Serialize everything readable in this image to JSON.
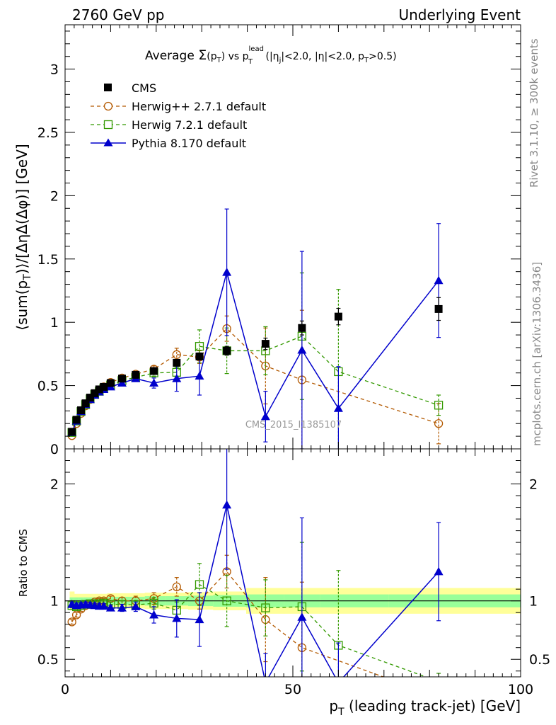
{
  "header": {
    "left": "2760 GeV pp",
    "right": "Underlying Event"
  },
  "side_labels": {
    "rivet": "Rivet 3.1.10, ≥ 300k events",
    "mcplots": "mcplots.cern.ch [arXiv:1306.3436]"
  },
  "watermark": "CMS_2015_I1385107",
  "chart_data": {
    "type": "line",
    "title_parts": {
      "t1": "Average ",
      "sigma": "Σ",
      "t2": "(p",
      "t2sub": "T",
      "t3": ") vs p",
      "t3sup": "lead",
      "t3sub": "T",
      "t4": " (|η",
      "t4sub": "j",
      "t5": "|<2.0, |η|<2.0, p",
      "t5sub": "T",
      "t6": ">0.5)"
    },
    "xlabel": {
      "pre": "p",
      "sub": "T",
      "post": " (leading track-jet) [GeV]"
    },
    "ylabel": "⟨sum(p_T)⟩/[ΔηΔ(Δφ)] [GeV]",
    "ylabel_parts": {
      "pre": "⟨sum(p",
      "sub": "T",
      "post": ")⟩/[ΔηΔ(Δφ)] [GeV]"
    },
    "ratio_ylabel": "Ratio to CMS",
    "xlim": [
      0,
      100
    ],
    "ylim": [
      0,
      3.35
    ],
    "ratio_ylim": [
      0.35,
      2.3
    ],
    "x_ticks": [
      "0",
      "50",
      "100"
    ],
    "y_ticks": [
      "0",
      "0.5",
      "1",
      "1.5",
      "2",
      "2.5",
      "3"
    ],
    "ratio_y_ticks": [
      "0.5",
      "1",
      "2"
    ],
    "legend_position": "top-left",
    "series": [
      {
        "name": "CMS",
        "color": "#000000",
        "marker": "square-filled",
        "x": [
          1.5,
          2.5,
          3.5,
          4.5,
          5.5,
          6.5,
          7.5,
          8.5,
          10,
          12.5,
          15.5,
          19.5,
          24.5,
          29.5,
          35.5,
          44,
          52,
          60,
          82
        ],
        "y": [
          0.135,
          0.23,
          0.305,
          0.36,
          0.405,
          0.44,
          0.47,
          0.49,
          0.52,
          0.555,
          0.585,
          0.615,
          0.68,
          0.73,
          0.775,
          0.83,
          0.955,
          1.045,
          1.105
        ],
        "yerr": [
          0.003,
          0.004,
          0.005,
          0.006,
          0.007,
          0.008,
          0.009,
          0.01,
          0.01,
          0.012,
          0.014,
          0.017,
          0.022,
          0.028,
          0.035,
          0.045,
          0.055,
          0.065,
          0.09
        ],
        "band_inner": [
          0.03,
          0.03,
          0.03,
          0.03,
          0.03,
          0.03,
          0.03,
          0.03,
          0.035,
          0.035,
          0.035,
          0.04,
          0.04,
          0.045,
          0.05,
          0.055,
          0.055,
          0.055,
          0.055
        ],
        "band_outer": [
          0.08,
          0.06,
          0.06,
          0.06,
          0.06,
          0.06,
          0.06,
          0.06,
          0.065,
          0.065,
          0.065,
          0.07,
          0.07,
          0.075,
          0.08,
          0.11,
          0.11,
          0.11,
          0.11
        ]
      },
      {
        "name": "Herwig++ 2.7.1 default",
        "color": "#b35900",
        "marker": "circle-open",
        "dash": "5,4",
        "x": [
          1.5,
          2.5,
          3.5,
          4.5,
          5.5,
          6.5,
          7.5,
          8.5,
          10,
          12.5,
          15.5,
          19.5,
          24.5,
          29.5,
          35.5,
          44,
          52,
          82
        ],
        "y": [
          0.105,
          0.2,
          0.28,
          0.34,
          0.39,
          0.43,
          0.465,
          0.49,
          0.525,
          0.56,
          0.59,
          0.63,
          0.745,
          0.725,
          0.95,
          0.655,
          0.545,
          0.2
        ],
        "yerr": [
          0.003,
          0.004,
          0.005,
          0.006,
          0.007,
          0.008,
          0.009,
          0.01,
          0.012,
          0.015,
          0.02,
          0.025,
          0.05,
          0.05,
          0.1,
          0.3,
          0.55,
          0.16
        ],
        "ratio": [
          0.82,
          0.88,
          0.93,
          0.96,
          0.97,
          0.99,
          1.0,
          1.0,
          1.02,
          1.0,
          1.0,
          1.02,
          1.12,
          1.0,
          1.25,
          0.84,
          0.6,
          0.18
        ],
        "ratio_err": [
          0.02,
          0.02,
          0.02,
          0.02,
          0.02,
          0.02,
          0.02,
          0.02,
          0.02,
          0.03,
          0.04,
          0.05,
          0.08,
          0.07,
          0.14,
          0.36,
          0.56,
          0.15
        ]
      },
      {
        "name": "Herwig 7.2.1 default",
        "color": "#339900",
        "marker": "square-open",
        "dash": "5,4",
        "x": [
          1.5,
          2.5,
          3.5,
          4.5,
          5.5,
          6.5,
          7.5,
          8.5,
          10,
          12.5,
          15.5,
          19.5,
          24.5,
          29.5,
          35.5,
          44,
          52,
          60,
          82
        ],
        "y": [
          0.13,
          0.22,
          0.295,
          0.35,
          0.395,
          0.43,
          0.455,
          0.48,
          0.505,
          0.54,
          0.565,
          0.6,
          0.605,
          0.81,
          0.775,
          0.775,
          0.89,
          0.61,
          0.345
        ],
        "yerr": [
          0.003,
          0.004,
          0.005,
          0.006,
          0.007,
          0.008,
          0.009,
          0.01,
          0.012,
          0.015,
          0.02,
          0.025,
          0.04,
          0.13,
          0.18,
          0.19,
          0.5,
          0.65,
          0.08
        ],
        "ratio": [
          0.96,
          0.95,
          0.96,
          0.97,
          0.975,
          0.975,
          0.97,
          0.98,
          0.97,
          0.97,
          0.965,
          0.98,
          0.92,
          1.14,
          1.0,
          0.94,
          0.95,
          0.62,
          0.31
        ],
        "ratio_err": [
          0.02,
          0.02,
          0.02,
          0.02,
          0.02,
          0.02,
          0.02,
          0.02,
          0.02,
          0.03,
          0.04,
          0.05,
          0.07,
          0.18,
          0.22,
          0.24,
          0.55,
          0.64,
          0.07
        ]
      },
      {
        "name": "Pythia 8.170 default",
        "color": "#0000cc",
        "marker": "triangle-filled",
        "x": [
          1.5,
          2.5,
          3.5,
          4.5,
          5.5,
          6.5,
          7.5,
          8.5,
          10,
          12.5,
          15.5,
          19.5,
          24.5,
          29.5,
          35.5,
          44,
          52,
          60,
          82
        ],
        "y": [
          0.13,
          0.22,
          0.295,
          0.35,
          0.39,
          0.425,
          0.45,
          0.47,
          0.49,
          0.52,
          0.555,
          0.52,
          0.555,
          0.575,
          1.395,
          0.255,
          0.78,
          0.32,
          1.33
        ],
        "yerr": [
          0.003,
          0.004,
          0.005,
          0.006,
          0.007,
          0.008,
          0.009,
          0.01,
          0.012,
          0.015,
          0.02,
          0.04,
          0.1,
          0.15,
          0.5,
          0.2,
          0.78,
          0.33,
          0.45
        ],
        "ratio": [
          0.97,
          0.96,
          0.965,
          0.97,
          0.965,
          0.96,
          0.955,
          0.955,
          0.94,
          0.94,
          0.95,
          0.88,
          0.85,
          0.84,
          1.82,
          0.3,
          0.86,
          0.3,
          1.25
        ],
        "ratio_err": [
          0.02,
          0.02,
          0.02,
          0.02,
          0.02,
          0.02,
          0.02,
          0.02,
          0.02,
          0.03,
          0.04,
          0.07,
          0.16,
          0.23,
          0.55,
          0.25,
          0.85,
          0.34,
          0.42
        ]
      }
    ]
  }
}
